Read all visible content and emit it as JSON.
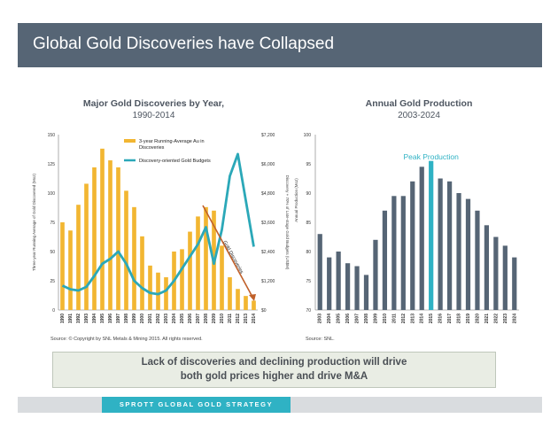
{
  "header": {
    "title": "Global Gold Discoveries have Collapsed"
  },
  "message": {
    "line1": "Lack of discoveries and declining production will drive",
    "line2": "both gold prices higher and drive M&A"
  },
  "footer": {
    "label": "SPROTT GLOBAL GOLD STRATEGY"
  },
  "colors": {
    "header_bg": "#566575",
    "bar_gold": "#f2b632",
    "budget_line": "#2ba8b8",
    "arrow": "#c0602a",
    "prod_bar": "#566575",
    "peak_bar": "#2fb2c4"
  },
  "chart_data": [
    {
      "type": "bar",
      "title": "Major Gold Discoveries by Year,",
      "subtitle": "1990-2014",
      "categories": [
        "1990",
        "1991",
        "1992",
        "1993",
        "1994",
        "1995",
        "1996",
        "1997",
        "1998",
        "1999",
        "2000",
        "2001",
        "2002",
        "2003",
        "2004",
        "2005",
        "2006",
        "2007",
        "2008",
        "2009",
        "2010",
        "2011",
        "2012",
        "2013",
        "2014"
      ],
      "series": [
        {
          "name": "3-year Running-Average Au in Discoveries",
          "axis": "left",
          "kind": "bar",
          "values": [
            75,
            68,
            90,
            108,
            122,
            138,
            128,
            122,
            102,
            88,
            63,
            38,
            32,
            28,
            50,
            52,
            67,
            80,
            88,
            85,
            55,
            28,
            18,
            12,
            8
          ]
        },
        {
          "name": "Discovery-oriented Gold Budgets",
          "axis": "right",
          "kind": "line",
          "values": [
            1000,
            850,
            800,
            950,
            1400,
            1900,
            2100,
            2400,
            1900,
            1200,
            900,
            700,
            650,
            800,
            1200,
            1700,
            2200,
            2700,
            3400,
            1900,
            3300,
            5500,
            6400,
            4500,
            2600
          ]
        }
      ],
      "y_left": {
        "min": 0,
        "max": 150,
        "ticks": [
          "0",
          "25",
          "50",
          "75",
          "100",
          "125",
          "150"
        ],
        "label": "Three-year Running Average of Gold Discovered (Moz)"
      },
      "y_right": {
        "min": 0,
        "max": 7200,
        "ticks": [
          "$0",
          "$1,200",
          "$2,400",
          "$3,600",
          "$4,800",
          "$6,000",
          "$7,200"
        ],
        "label": "Discovery + 70% of Late-stage Gold Budgets (US$M)"
      },
      "annotation": "Gold Discoveries",
      "source": "Source:  © Copyright by SNL Metals & Mining 2015.  All rights reserved."
    },
    {
      "type": "bar",
      "title": "Annual Gold Production",
      "subtitle": "2003-2024",
      "categories": [
        "2003",
        "2004",
        "2005",
        "2006",
        "2007",
        "2008",
        "2009",
        "2010",
        "2011",
        "2012",
        "2013",
        "2014",
        "2015",
        "2016",
        "2017",
        "2018",
        "2019",
        "2020",
        "2021",
        "2022",
        "2023",
        "2024"
      ],
      "values": [
        83,
        79,
        80,
        78,
        77.5,
        76,
        82,
        87,
        89.5,
        89.5,
        92,
        94.5,
        95.5,
        92.5,
        92,
        90,
        89,
        87,
        84.5,
        82.5,
        81,
        79
      ],
      "highlight_category": "2015",
      "highlight_label": "Peak Production",
      "y_axis": {
        "min": 70,
        "max": 100,
        "ticks": [
          "70",
          "75",
          "80",
          "85",
          "90",
          "95",
          "100"
        ],
        "label": "Annual Production (Moz)"
      },
      "source": "Source:  SNL."
    }
  ]
}
